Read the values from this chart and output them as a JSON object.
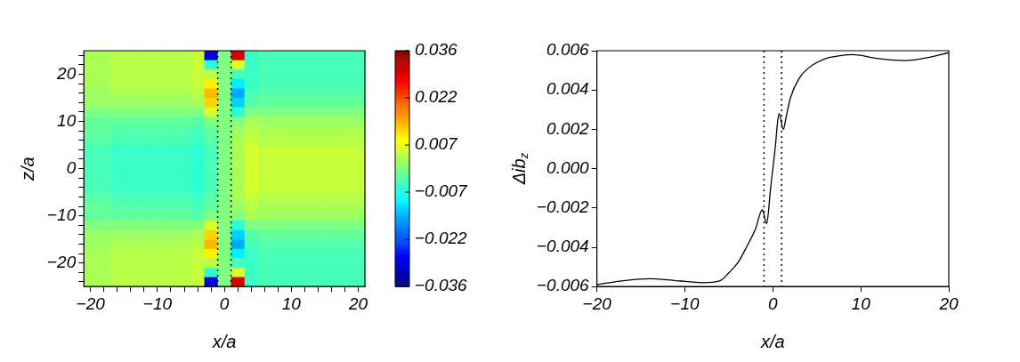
{
  "chart_data": [
    {
      "type": "heatmap",
      "xlabel": "x/a",
      "ylabel": "z/a",
      "categories": [
        "−20",
        null,
        null,
        null,
        null,
        "−10",
        null,
        null,
        null,
        null,
        "0",
        null,
        null,
        null,
        null,
        "10",
        null,
        null,
        null,
        null,
        "20"
      ],
      "y_categories": [
        null,
        null,
        "20",
        null,
        null,
        null,
        null,
        "10",
        null,
        null,
        null,
        null,
        "0",
        null,
        null,
        null,
        null,
        "−10",
        null,
        null,
        null,
        null,
        "−20",
        null,
        null
      ],
      "cells": [
        [
          0.003,
          0.003,
          0.004,
          0.004,
          0.004,
          0.004,
          0.004,
          0.004,
          0.005,
          -0.03,
          0,
          0.03,
          -0.005,
          -0.004,
          -0.004,
          -0.004,
          -0.004,
          -0.004,
          -0.004,
          -0.004,
          -0.004
        ],
        [
          0.003,
          0.003,
          0.004,
          0.004,
          0.004,
          0.004,
          0.004,
          0.004,
          0.005,
          -0.006,
          0,
          0.006,
          -0.005,
          -0.004,
          -0.004,
          -0.004,
          -0.004,
          -0.004,
          -0.004,
          -0.004,
          -0.004
        ],
        [
          0.003,
          0.003,
          0.004,
          0.004,
          0.004,
          0.004,
          0.004,
          0.004,
          0.005,
          0.004,
          0,
          -0.004,
          -0.005,
          -0.004,
          -0.004,
          -0.004,
          -0.004,
          -0.004,
          -0.004,
          -0.004,
          -0.004
        ],
        [
          0.003,
          0.003,
          0.004,
          0.004,
          0.004,
          0.004,
          0.004,
          0.004,
          0.005,
          0.01,
          0,
          -0.01,
          -0.005,
          -0.004,
          -0.004,
          -0.004,
          -0.004,
          -0.004,
          -0.004,
          -0.004,
          -0.004
        ],
        [
          0.002,
          0.002,
          0.003,
          0.003,
          0.003,
          0.003,
          0.003,
          0.003,
          0.004,
          0.014,
          0,
          -0.015,
          -0.004,
          -0.003,
          -0.003,
          -0.003,
          -0.003,
          -0.003,
          -0.003,
          -0.003,
          -0.003
        ],
        [
          0.002,
          0.002,
          0.002,
          0.002,
          0.002,
          0.002,
          0.002,
          0.002,
          0.003,
          0.012,
          0,
          -0.012,
          -0.003,
          -0.002,
          -0.002,
          -0.002,
          -0.002,
          -0.002,
          -0.002,
          -0.002,
          -0.002
        ],
        [
          0,
          0,
          0,
          0,
          0,
          0,
          0,
          0,
          0,
          0.006,
          0,
          -0.006,
          0,
          0,
          0,
          0,
          0,
          0,
          0,
          0,
          0
        ],
        [
          -0.002,
          -0.002,
          -0.002,
          -0.002,
          -0.002,
          -0.002,
          -0.002,
          -0.002,
          -0.003,
          0,
          0,
          0,
          0.003,
          0.002,
          0.002,
          0.002,
          0.002,
          0.002,
          0.002,
          0.002,
          0.002
        ],
        [
          -0.002,
          -0.002,
          -0.003,
          -0.003,
          -0.003,
          -0.003,
          -0.003,
          -0.003,
          -0.004,
          -0.002,
          0,
          0.002,
          0.004,
          0.003,
          0.003,
          0.003,
          0.003,
          0.003,
          0.003,
          0.003,
          0.003
        ],
        [
          -0.003,
          -0.003,
          -0.004,
          -0.004,
          -0.004,
          -0.004,
          -0.004,
          -0.004,
          -0.005,
          -0.003,
          0,
          0.003,
          0.005,
          0.004,
          0.004,
          0.004,
          0.004,
          0.004,
          0.004,
          0.004,
          0.004
        ],
        [
          -0.004,
          -0.004,
          -0.005,
          -0.005,
          -0.005,
          -0.005,
          -0.005,
          -0.005,
          -0.006,
          -0.004,
          0,
          0.003,
          0.006,
          0.005,
          0.005,
          0.005,
          0.005,
          0.005,
          0.005,
          0.005,
          0.005
        ],
        [
          -0.004,
          -0.004,
          -0.005,
          -0.005,
          -0.005,
          -0.005,
          -0.005,
          -0.005,
          -0.006,
          -0.004,
          0,
          0.003,
          0.006,
          0.005,
          0.005,
          0.005,
          0.005,
          0.005,
          0.005,
          0.005,
          0.005
        ],
        [
          -0.004,
          -0.004,
          -0.005,
          -0.005,
          -0.005,
          -0.005,
          -0.005,
          -0.005,
          -0.006,
          -0.004,
          0,
          0.003,
          0.006,
          0.005,
          0.005,
          0.005,
          0.005,
          0.005,
          0.005,
          0.005,
          0.005
        ],
        [
          -0.004,
          -0.004,
          -0.005,
          -0.005,
          -0.005,
          -0.005,
          -0.005,
          -0.005,
          -0.006,
          -0.004,
          0,
          0.003,
          0.006,
          0.005,
          0.005,
          0.005,
          0.005,
          0.005,
          0.005,
          0.005,
          0.005
        ],
        [
          -0.004,
          -0.004,
          -0.005,
          -0.005,
          -0.005,
          -0.005,
          -0.005,
          -0.005,
          -0.006,
          -0.004,
          0,
          0.003,
          0.006,
          0.005,
          0.005,
          0.005,
          0.005,
          0.005,
          0.005,
          0.005,
          0.005
        ],
        [
          -0.003,
          -0.003,
          -0.004,
          -0.004,
          -0.004,
          -0.004,
          -0.004,
          -0.004,
          -0.005,
          -0.003,
          0,
          0.003,
          0.005,
          0.004,
          0.004,
          0.004,
          0.004,
          0.004,
          0.004,
          0.004,
          0.004
        ],
        [
          -0.002,
          -0.002,
          -0.003,
          -0.003,
          -0.003,
          -0.003,
          -0.003,
          -0.003,
          -0.004,
          -0.002,
          0,
          0.002,
          0.004,
          0.003,
          0.003,
          0.003,
          0.003,
          0.003,
          0.003,
          0.003,
          0.003
        ],
        [
          -0.002,
          -0.002,
          -0.002,
          -0.002,
          -0.002,
          -0.002,
          -0.002,
          -0.002,
          -0.003,
          0,
          0,
          0,
          0.003,
          0.002,
          0.002,
          0.002,
          0.002,
          0.002,
          0.002,
          0.002,
          0.002
        ],
        [
          0,
          0,
          0,
          0,
          0,
          0,
          0,
          0,
          0,
          0.006,
          0,
          -0.006,
          0,
          0,
          0,
          0,
          0,
          0,
          0,
          0,
          0
        ],
        [
          0.002,
          0.002,
          0.002,
          0.002,
          0.002,
          0.002,
          0.002,
          0.002,
          0.003,
          0.012,
          0,
          -0.012,
          -0.003,
          -0.002,
          -0.002,
          -0.002,
          -0.002,
          -0.002,
          -0.002,
          -0.002,
          -0.002
        ],
        [
          0.002,
          0.002,
          0.003,
          0.003,
          0.003,
          0.003,
          0.003,
          0.003,
          0.004,
          0.014,
          0,
          -0.015,
          -0.004,
          -0.003,
          -0.003,
          -0.003,
          -0.003,
          -0.003,
          -0.003,
          -0.003,
          -0.003
        ],
        [
          0.003,
          0.003,
          0.004,
          0.004,
          0.004,
          0.004,
          0.004,
          0.004,
          0.005,
          0.01,
          0,
          -0.01,
          -0.005,
          -0.004,
          -0.004,
          -0.004,
          -0.004,
          -0.004,
          -0.004,
          -0.004,
          -0.004
        ],
        [
          0.003,
          0.003,
          0.004,
          0.004,
          0.004,
          0.004,
          0.004,
          0.004,
          0.005,
          0.004,
          0,
          -0.004,
          -0.005,
          -0.004,
          -0.004,
          -0.004,
          -0.004,
          -0.004,
          -0.004,
          -0.004,
          -0.004
        ],
        [
          0.003,
          0.003,
          0.004,
          0.004,
          0.004,
          0.004,
          0.004,
          0.004,
          0.005,
          -0.006,
          0,
          0.006,
          -0.005,
          -0.004,
          -0.004,
          -0.004,
          -0.004,
          -0.004,
          -0.004,
          -0.004,
          -0.004
        ],
        [
          0.003,
          0.003,
          0.004,
          0.004,
          0.004,
          0.004,
          0.004,
          0.004,
          0.005,
          -0.03,
          0,
          0.03,
          -0.005,
          -0.004,
          -0.004,
          -0.004,
          -0.004,
          -0.004,
          -0.004,
          -0.004,
          -0.004
        ]
      ],
      "clim": [
        -0.036,
        0.036
      ],
      "cticks": [
        {
          "value": -0.036,
          "label": "−0.036"
        },
        {
          "value": -0.0216,
          "label": "−0.022"
        },
        {
          "value": -0.0072,
          "label": "−0.007"
        },
        {
          "value": 0.0072,
          "label": "0.007"
        },
        {
          "value": 0.0216,
          "label": "0.022"
        },
        {
          "value": 0.036,
          "label": "0.036"
        }
      ]
    },
    {
      "type": "line",
      "xlabel": "x/a",
      "ylabel": "Δib$_{z}$",
      "x": [
        -20,
        -17,
        -14,
        -11,
        -8,
        -6,
        -5,
        -4,
        -3,
        -2,
        -1.2,
        -0.7,
        -0.5,
        -0.3,
        0,
        0.3,
        0.5,
        0.7,
        1.2,
        1.5,
        2,
        3,
        4,
        5,
        6,
        7,
        9,
        12,
        15,
        17,
        20
      ],
      "series": [
        {
          "color": "#000000",
          "values": [
            -0.0059,
            -0.0057,
            -0.0056,
            -0.0057,
            -0.0058,
            -0.0057,
            -0.0053,
            -0.0048,
            -0.004,
            -0.0031,
            -0.0021,
            -0.0028,
            -0.0022,
            -0.0012,
            0,
            0.0012,
            0.0022,
            0.0028,
            0.002,
            0.0026,
            0.0036,
            0.0046,
            0.0051,
            0.0054,
            0.0056,
            0.0057,
            0.0058,
            0.0056,
            0.0055,
            0.0056,
            0.0059
          ]
        }
      ],
      "xlim": [
        -20,
        20
      ],
      "xticks": [
        {
          "value": -20,
          "label": "−20"
        },
        {
          "value": -10,
          "label": "−10"
        },
        0,
        10,
        20
      ],
      "ylim": [
        -0.006,
        0.006
      ],
      "yticks": [
        {
          "value": -0.006,
          "label": "−0.006"
        },
        {
          "value": -0.004,
          "label": "−0.004"
        },
        {
          "value": -0.002,
          "label": "−0.002"
        },
        {
          "value": 0,
          "label": "0.000"
        },
        0.002,
        0.004,
        0.006
      ],
      "marker": "none",
      "line_style": "solid",
      "ref_lines": [
        {
          "axis": "x",
          "value": -1,
          "color": "#000000",
          "line_style": "dotted"
        },
        {
          "axis": "x",
          "value": 1,
          "color": "#000000",
          "line_style": "dotted"
        }
      ]
    }
  ]
}
